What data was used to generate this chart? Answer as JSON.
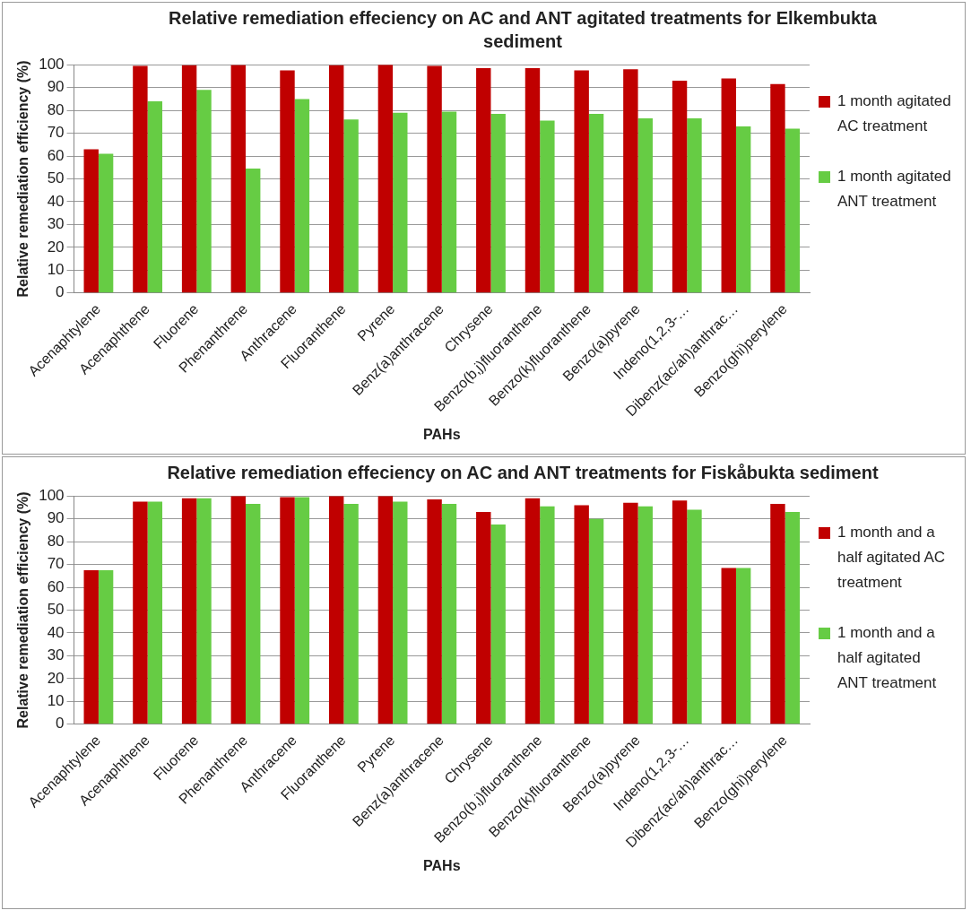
{
  "chart_data": [
    {
      "type": "bar",
      "title": "Relative remediation effeciency on AC and ANT agitated treatments  for Elkembukta sediment",
      "xlabel": "PAHs",
      "ylabel": "Relative remediation efficiency (%)",
      "categories": [
        "Acenaphtylene",
        "Acenaphthene",
        "Fluorene",
        "Phenanthrene",
        "Anthracene",
        "Fluoranthene",
        "Pyrene",
        "Benz(a)anthracene",
        "Chrysene",
        "Benzo(b,j)fluoranthene",
        "Benzo(k)fluoranthene",
        "Benzo(a)pyrene",
        "Indeno(1,2,3-…",
        "Dibenz(ac/ah)anthrac…",
        "Benzo(ghi)perylene"
      ],
      "series": [
        {
          "name": "1 month agitated AC treatment",
          "color": "#c00000",
          "values": [
            63,
            99.5,
            99.8,
            99.9,
            97.5,
            99.8,
            100,
            99.5,
            98.5,
            98.5,
            97.5,
            98,
            93,
            94,
            91.5
          ]
        },
        {
          "name": "1 month agitated ANT treatment",
          "color": "#66cc44",
          "values": [
            61,
            84,
            89,
            54.5,
            85,
            76,
            79,
            79.5,
            78.5,
            75.5,
            78.5,
            76.5,
            76.5,
            73,
            72
          ]
        }
      ],
      "ylim": [
        0,
        100
      ],
      "yticks": [
        0,
        10,
        20,
        30,
        40,
        50,
        60,
        70,
        80,
        90,
        100
      ],
      "grid": "y",
      "legend": "right"
    },
    {
      "type": "bar",
      "title": "Relative remediation effeciency on AC and ANT treatments  for Fiskåbukta sediment",
      "xlabel": "PAHs",
      "ylabel": "Relative remediation efficiency (%)",
      "categories": [
        "Acenaphtylene",
        "Acenaphthene",
        "Fluorene",
        "Phenanthrene",
        "Anthracene",
        "Fluoranthene",
        "Pyrene",
        "Benz(a)anthracene",
        "Chrysene",
        "Benzo(b,j)fluoranthene",
        "Benzo(k)fluoranthene",
        "Benzo(a)pyrene",
        "Indeno(1,2,3-…",
        "Dibenz(ac/ah)anthrac…",
        "Benzo(ghi)perylene"
      ],
      "series": [
        {
          "name": "1 month and a half agitated AC treatment",
          "color": "#c00000",
          "values": [
            67.5,
            97.5,
            99,
            100,
            99.5,
            100,
            100,
            98.5,
            93,
            99,
            96,
            97,
            98,
            68.5,
            96.5
          ]
        },
        {
          "name": "1 month and a half agitated ANT treatment",
          "color": "#66cc44",
          "values": [
            67.5,
            97.5,
            99,
            96.5,
            99.5,
            96.5,
            97.5,
            96.5,
            87.5,
            95.5,
            90,
            95.5,
            94,
            68.5,
            93
          ]
        }
      ],
      "ylim": [
        0,
        100
      ],
      "yticks": [
        0,
        10,
        20,
        30,
        40,
        50,
        60,
        70,
        80,
        90,
        100
      ],
      "grid": "y",
      "legend": "right"
    }
  ]
}
